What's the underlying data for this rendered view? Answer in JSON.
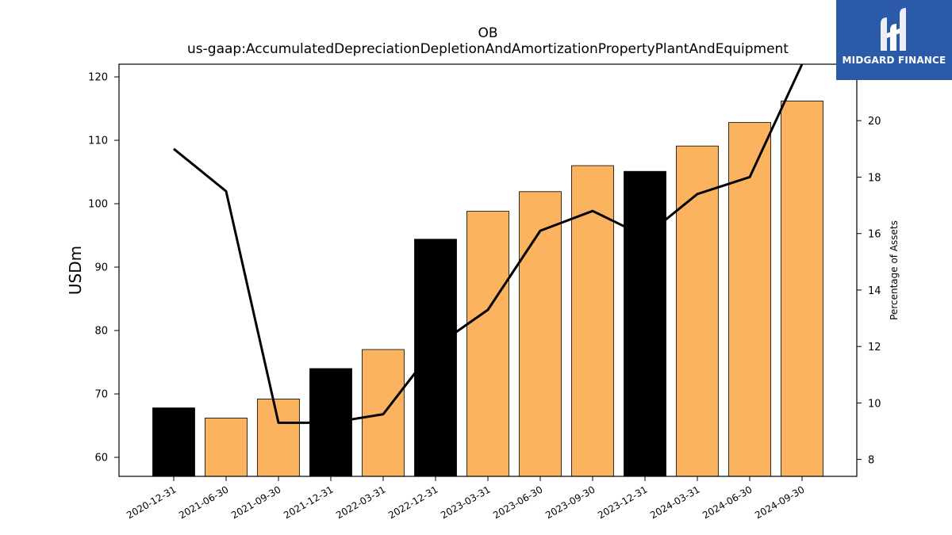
{
  "chart_data": {
    "type": "bar",
    "title": "OB",
    "subtitle": "us-gaap:AccumulatedDepreciationDepletionAndAmortizationPropertyPlantAndEquipment",
    "ylabel": "USDm",
    "y2label": "Percentage of Assets",
    "categories": [
      "2020-12-31",
      "2021-06-30",
      "2021-09-30",
      "2021-12-31",
      "2022-03-31",
      "2022-12-31",
      "2023-03-31",
      "2023-06-30",
      "2023-09-30",
      "2023-12-31",
      "2024-03-31",
      "2024-06-30",
      "2024-09-30"
    ],
    "values": [
      67.8,
      66.2,
      69.2,
      74.0,
      77.0,
      94.4,
      98.8,
      101.9,
      106.0,
      105.1,
      109.1,
      112.8,
      116.2
    ],
    "bar_colors": [
      "#000000",
      "#fbb360",
      "#fbb360",
      "#000000",
      "#fbb360",
      "#000000",
      "#fbb360",
      "#fbb360",
      "#fbb360",
      "#000000",
      "#fbb360",
      "#fbb360",
      "#fbb360"
    ],
    "line_values": [
      19.0,
      17.5,
      9.3,
      9.3,
      9.6,
      12.0,
      13.3,
      16.1,
      16.8,
      15.9,
      17.4,
      18.0,
      22.0
    ],
    "ylim": [
      57,
      122
    ],
    "y2lim": [
      7.4,
      22.0
    ],
    "yticks": [
      60,
      70,
      80,
      90,
      100,
      110,
      120
    ],
    "y2ticks": [
      8,
      10,
      12,
      14,
      16,
      18,
      20
    ],
    "grid": false,
    "legend": "none"
  },
  "logo": {
    "text": "MIDGARD FINANCE",
    "background": "#2b5aa8"
  },
  "colors": {
    "annual_bar": "#000000",
    "quarterly_bar": "#fbb360",
    "line": "#000000"
  }
}
